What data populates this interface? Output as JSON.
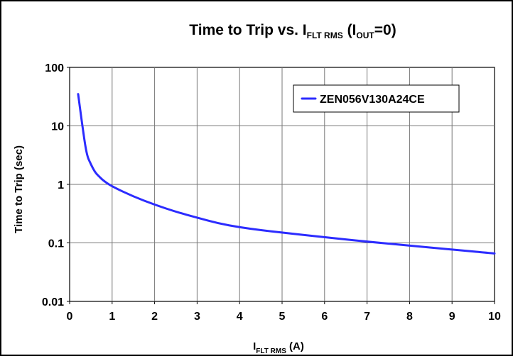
{
  "chart_data": {
    "type": "line",
    "title": {
      "prefix": "Time to Trip vs. I",
      "subscript1": "FLT RMS",
      "middle": " (I",
      "subscript2": "OUT",
      "suffix": "=0)"
    },
    "xlabel": {
      "prefix": "I",
      "subscript": "FLT RMS",
      "suffix": " (A)"
    },
    "ylabel": "Time to Trip (sec)",
    "xlim": [
      0,
      10
    ],
    "ylim": [
      0.01,
      100
    ],
    "yscale": "log",
    "grid": true,
    "legend": "top-right",
    "x_ticks": [
      "0",
      "1",
      "2",
      "3",
      "4",
      "5",
      "6",
      "7",
      "8",
      "9",
      "10"
    ],
    "y_ticks": [
      "100",
      "10",
      "1",
      "0.1",
      "0.01"
    ],
    "series": [
      {
        "name": "ZEN056V130A24CE",
        "color": "#2c2cff",
        "points": [
          [
            0.2,
            35
          ],
          [
            0.3,
            10
          ],
          [
            0.4,
            3.2
          ],
          [
            0.5,
            2.2
          ],
          [
            0.6,
            1.6
          ],
          [
            0.7,
            1.35
          ],
          [
            0.8,
            1.15
          ],
          [
            1.0,
            0.92
          ],
          [
            1.5,
            0.62
          ],
          [
            2.0,
            0.45
          ],
          [
            2.5,
            0.34
          ],
          [
            3.0,
            0.27
          ],
          [
            3.5,
            0.215
          ],
          [
            4.0,
            0.185
          ],
          [
            4.5,
            0.165
          ],
          [
            5.0,
            0.15
          ],
          [
            6.0,
            0.125
          ],
          [
            7.0,
            0.105
          ],
          [
            8.0,
            0.09
          ],
          [
            9.0,
            0.077
          ],
          [
            10.0,
            0.066
          ]
        ]
      }
    ]
  }
}
